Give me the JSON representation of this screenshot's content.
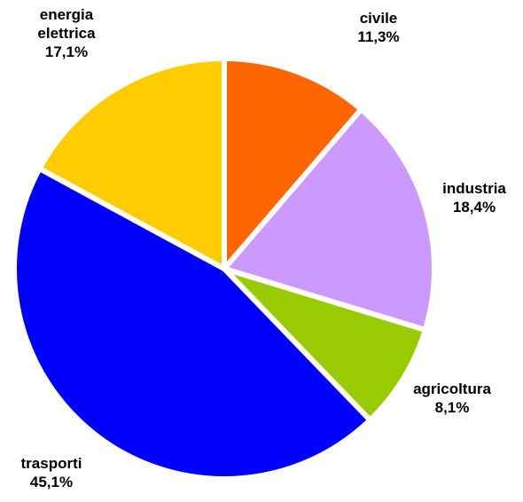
{
  "chart_data": {
    "type": "pie",
    "categories": [
      "civile",
      "industria",
      "agricoltura",
      "trasporti",
      "energia elettrica"
    ],
    "values": [
      11.3,
      18.4,
      8.1,
      45.1,
      17.1
    ],
    "value_labels": [
      "11,3%",
      "18,4%",
      "8,1%",
      "45,1%",
      "17,1%"
    ],
    "colors": [
      "#ff6600",
      "#cc99ff",
      "#99cc00",
      "#0000ff",
      "#ffcc00"
    ]
  }
}
